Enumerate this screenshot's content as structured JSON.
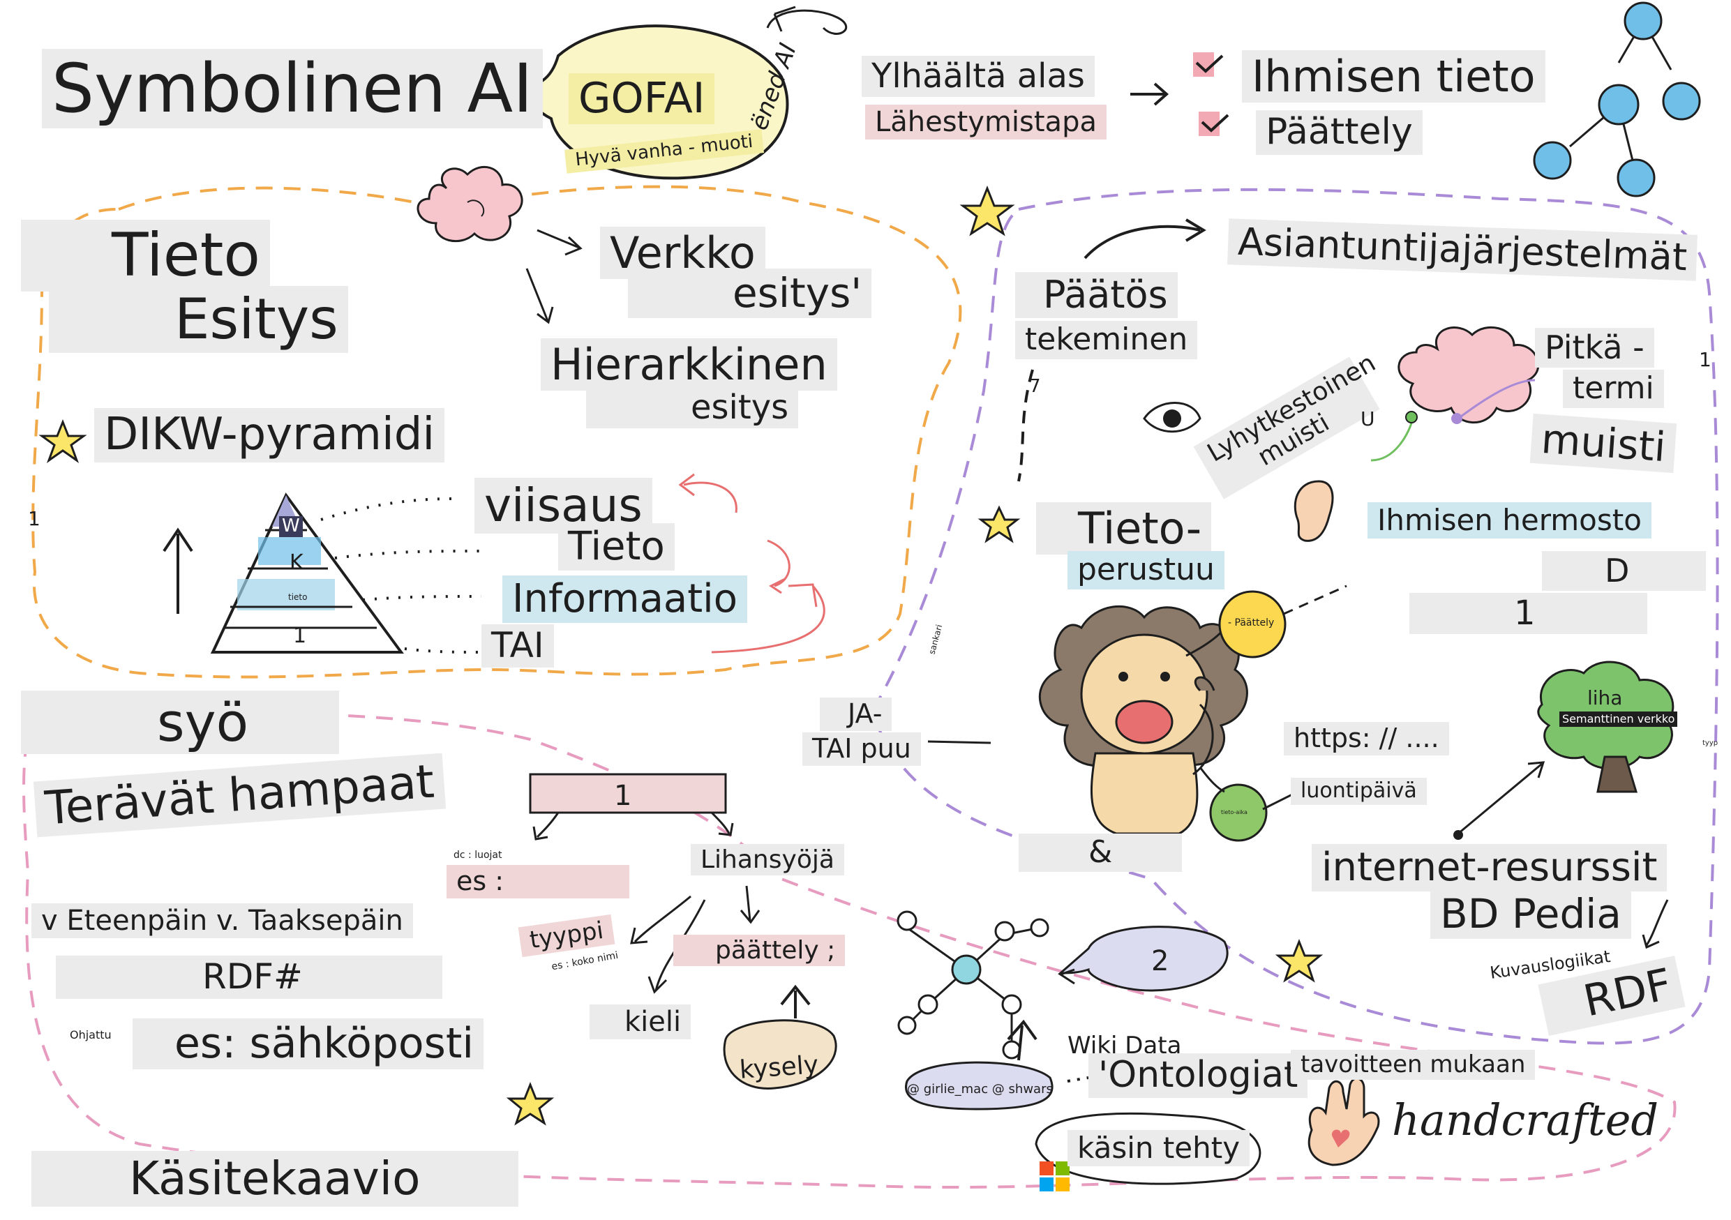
{
  "title": "Symbolinen AI",
  "gofai": {
    "acronym": "GOFAI",
    "subtitle": "Hyvä vanha - muoti",
    "handwritten": "ëned AI"
  },
  "top_down": {
    "line1": "Ylhäältä alas",
    "line2": "Lähestymistapa"
  },
  "human_knowledge": {
    "knowledge": "Ihmisen tieto",
    "reasoning": "Päättely"
  },
  "knowledge_repr": {
    "line1": "Tieto",
    "line2": "Esitys"
  },
  "network_repr": {
    "line1": "Verkko",
    "line2": "esitys'"
  },
  "hierarchical_repr": {
    "line1": "Hierarkkinen",
    "line2": "esitys"
  },
  "dikw": {
    "label": "DIKW-pyramidi",
    "levels": [
      "viisaus",
      "Tieto",
      "Informaatio",
      "TAI"
    ],
    "pyramid_marks": [
      "W",
      "K",
      "tieto",
      "1"
    ],
    "side_marks": [
      "1"
    ]
  },
  "decision_making": {
    "line1": "Päätös",
    "line2": "tekeminen",
    "mark": "7"
  },
  "expert_systems": {
    "title": "Asiantuntijajärjestelmät",
    "short_term": "Lyhytkestoinen muisti",
    "short_term_mark": "U",
    "long_term_1": "Pitkä -",
    "long_term_2": "termi",
    "long_term_3": "muisti",
    "nervous_system": "Ihmisen hermosto",
    "mark_d": "D",
    "mark_1": "1",
    "edge_mark": "1"
  },
  "knowledge_based": {
    "line1": "Tieto-",
    "line2": "perustuu"
  },
  "lion": {
    "and_or_tree": [
      "JA-",
      "TAI puu"
    ],
    "reasoning_bubble": "- Päättely",
    "side_note": "sankari",
    "ampersand": "&"
  },
  "web": {
    "url": "https: // ....",
    "creation_date": "luontipäivä",
    "small_bubble": "tieto-aika"
  },
  "tree": {
    "label": "liha",
    "semantic": "Semanttinen verkko"
  },
  "internet": {
    "resources": "internet-resurssit",
    "dbpedia": "BD Pedia",
    "description_logic": "Kuvauslogiikat",
    "rdf": "RDF",
    "edge_mark": "tyyp"
  },
  "eats": "syö",
  "sharp_teeth": "Terävät hampaat",
  "chaining": "v Eteenpäin v. Taaksepäin",
  "rdf_hash": "RDF#",
  "email": {
    "prefix": "Ohjattu",
    "text": "es: sähköposti"
  },
  "concept_map": "Käsitekaavio",
  "frame": {
    "top": "1",
    "example_tag": "dc : luojat",
    "example": "es :",
    "carnivore": "Lihansyöjä",
    "type": "tyyppi",
    "type_example": "es : koko nimi",
    "language": "kieli",
    "reasoning": "päättely ;",
    "query": "kysely"
  },
  "ontology": {
    "bubble": "2",
    "wikidata": "Wiki Data",
    "ontologies": "'Ontologiat",
    "credit": "@ girlie_mac @ shwars",
    "handmade": "käsin tehty",
    "by_goal": "tavoitteen mukaan",
    "handcrafted": "handcrafted"
  },
  "colors": {
    "orange_dash": "#f0a848",
    "purple_dash": "#a98ad6",
    "pink_dash": "#e79bbf",
    "blue_node": "#6fbfe8",
    "pink_block": "#f0d6d6",
    "gray_block": "#ebebeb",
    "red_arrow": "#e86f6f"
  },
  "icons": [
    "brain-icon",
    "eye-icon",
    "ear-icon",
    "lion-icon",
    "tree-icon",
    "molecule-icon",
    "hand-icon",
    "star-icon",
    "network-tree-icon",
    "pyramid-icon",
    "windows-logo-icon"
  ]
}
